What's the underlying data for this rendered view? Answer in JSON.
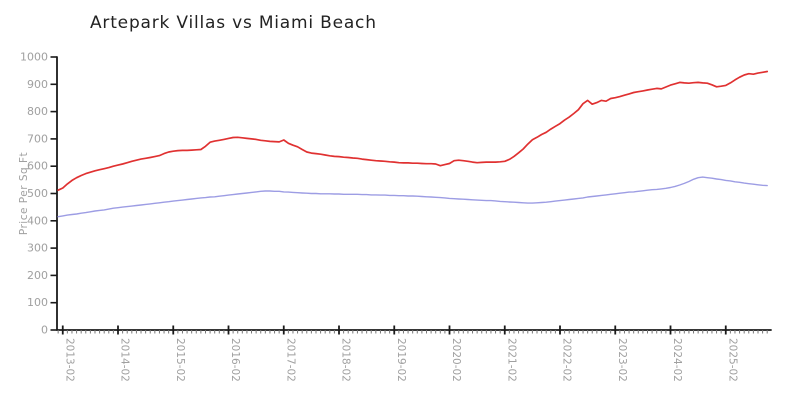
{
  "title": "Artepark Villas vs Miami Beach",
  "colors": {
    "series_red": "#e03131",
    "series_blue": "#9d9de4",
    "axis": "#1a1a1a",
    "tick_label": "#a0a0a0",
    "minor_tick": "#777777",
    "title_text": "#222222"
  },
  "chart_data": {
    "type": "line",
    "title": "Artepark Villas vs Miami Beach",
    "xlabel": "",
    "ylabel": "Price Per Sq Ft",
    "ylim": [
      0,
      1000
    ],
    "y_ticks": [
      0,
      100,
      200,
      300,
      400,
      500,
      600,
      700,
      800,
      900,
      1000
    ],
    "x_tick_labels": [
      "2013-02",
      "2014-02",
      "2015-02",
      "2016-02",
      "2017-02",
      "2018-02",
      "2019-02",
      "2020-02",
      "2021-02",
      "2022-02",
      "2023-02",
      "2024-02",
      "2025-02"
    ],
    "x_start": "2013-01",
    "x_interval": "month",
    "grid": false,
    "legend_position": "none",
    "series": [
      {
        "name": "Artepark Villas",
        "color": "#e03131",
        "values": [
          512,
          520,
          535,
          548,
          558,
          566,
          573,
          578,
          583,
          587,
          591,
          595,
          600,
          604,
          608,
          613,
          618,
          622,
          626,
          629,
          632,
          635,
          639,
          646,
          652,
          655,
          657,
          658,
          658,
          659,
          660,
          661,
          673,
          688,
          692,
          695,
          698,
          702,
          705,
          706,
          704,
          702,
          700,
          698,
          695,
          693,
          691,
          690,
          689,
          696,
          684,
          677,
          671,
          661,
          652,
          648,
          646,
          644,
          641,
          638,
          636,
          635,
          633,
          632,
          630,
          629,
          626,
          624,
          622,
          620,
          619,
          618,
          616,
          615,
          613,
          612,
          612,
          611,
          611,
          610,
          609,
          609,
          608,
          602,
          606,
          610,
          620,
          622,
          620,
          618,
          615,
          613,
          614,
          615,
          615,
          615,
          616,
          618,
          625,
          636,
          649,
          663,
          681,
          697,
          706,
          716,
          724,
          736,
          746,
          756,
          769,
          780,
          793,
          807,
          829,
          841,
          827,
          833,
          841,
          838,
          848,
          851,
          855,
          860,
          865,
          870,
          873,
          876,
          879,
          882,
          885,
          883,
          890,
          897,
          902,
          907,
          905,
          904,
          906,
          907,
          905,
          904,
          898,
          891,
          893,
          896,
          905,
          916,
          926,
          934,
          939,
          937,
          941,
          944,
          947
        ]
      },
      {
        "name": "Miami Beach",
        "color": "#9d9de4",
        "values": [
          415,
          418,
          421,
          423,
          425,
          428,
          430,
          433,
          436,
          438,
          440,
          443,
          446,
          448,
          450,
          452,
          454,
          456,
          458,
          460,
          462,
          464,
          466,
          468,
          470,
          472,
          474,
          476,
          478,
          480,
          482,
          484,
          485,
          487,
          488,
          490,
          492,
          494,
          496,
          498,
          500,
          502,
          504,
          506,
          508,
          509,
          509,
          508,
          508,
          506,
          505,
          504,
          503,
          502,
          501,
          500,
          500,
          499,
          499,
          499,
          498,
          498,
          497,
          497,
          497,
          497,
          496,
          496,
          495,
          495,
          494,
          494,
          493,
          493,
          492,
          492,
          491,
          491,
          490,
          489,
          488,
          487,
          486,
          485,
          484,
          482,
          481,
          480,
          479,
          478,
          477,
          476,
          475,
          474,
          474,
          473,
          471,
          470,
          469,
          468,
          467,
          466,
          465,
          465,
          466,
          467,
          468,
          470,
          472,
          474,
          476,
          478,
          480,
          482,
          484,
          487,
          489,
          491,
          493,
          495,
          497,
          499,
          501,
          503,
          505,
          506,
          508,
          510,
          512,
          514,
          515,
          517,
          519,
          522,
          526,
          531,
          537,
          544,
          552,
          558,
          560,
          558,
          556,
          553,
          551,
          548,
          546,
          543,
          541,
          538,
          536,
          534,
          532,
          530,
          529
        ]
      }
    ]
  }
}
